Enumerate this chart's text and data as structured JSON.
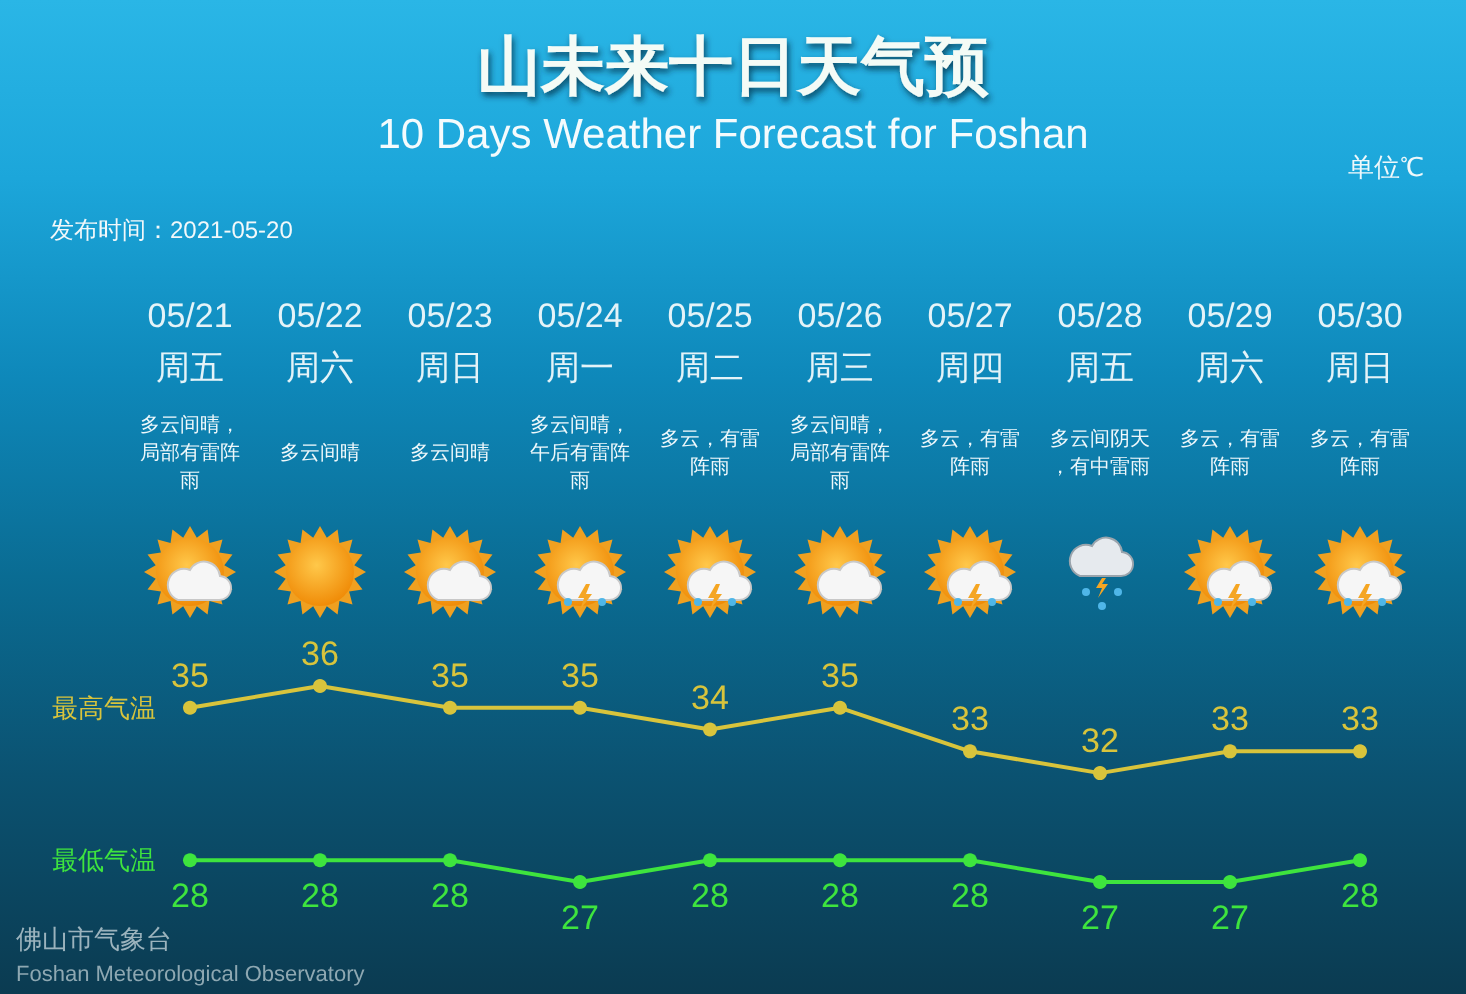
{
  "chart_data": {
    "type": "line",
    "title": "山未来十日天气预",
    "subtitle": "10 Days Weather Forecast for Foshan",
    "categories": [
      "05/21周五",
      "05/22周六",
      "05/23周日",
      "05/24周一",
      "05/25周二",
      "05/26周三",
      "05/27周四",
      "05/28周五",
      "05/29周六",
      "05/30周日"
    ],
    "series": [
      {
        "name": "最高气温",
        "color": "#d8c43c",
        "values": [
          35,
          36,
          35,
          35,
          34,
          35,
          33,
          32,
          33,
          33
        ]
      },
      {
        "name": "最低气温",
        "color": "#3ee43e",
        "values": [
          28,
          28,
          28,
          27,
          28,
          28,
          28,
          27,
          27,
          28
        ]
      }
    ],
    "annotations": [
      "单位℃",
      "发布时间：2021-05-20",
      "多云间晴，局部有雷阵雨",
      "多云间晴",
      "多云间晴",
      "多云间晴，午后有雷阵雨",
      "多云，有雷阵雨",
      "多云间晴，局部有雷阵雨",
      "多云，有雷阵雨",
      "多云间阴天，有中雷雨",
      "多云，有雷阵雨",
      "多云，有雷阵雨",
      "佛山市气象台",
      "Foshan Meteorological Observatory"
    ],
    "data_labels": true,
    "marker": "circle",
    "line_style": "solid",
    "grid": false,
    "tick_labels": "x"
  }
}
